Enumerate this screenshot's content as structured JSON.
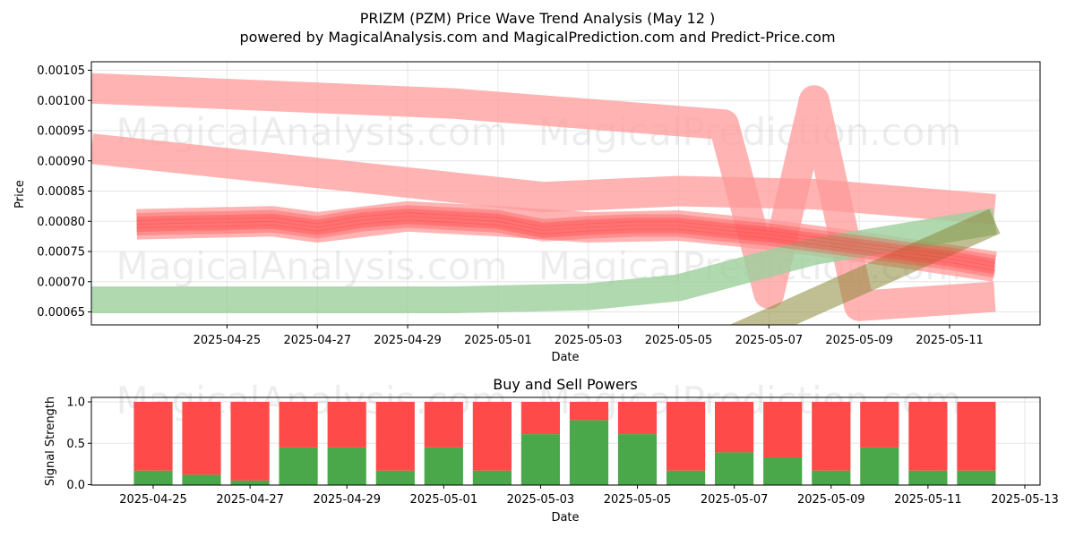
{
  "title_line1": "PRIZM (PZM) Price Wave Trend Analysis (May 12 )",
  "title_line2": "powered by MagicalAnalysis.com and MagicalPrediction.com and Predict-Price.com",
  "watermarks": [
    "MagicalAnalysis.com",
    "MagicalPrediction.com"
  ],
  "colors": {
    "sell": "#ff4a4a",
    "buy": "#4aa84a",
    "band_red": "#ff9a9a",
    "band_green": "#9ccf9c",
    "grid": "#e6e6e6"
  },
  "chart_data": [
    {
      "type": "line",
      "title": "",
      "xlabel": "Date",
      "ylabel": "Price",
      "x_ticks": [
        "2025-04-25",
        "2025-04-27",
        "2025-04-29",
        "2025-05-01",
        "2025-05-03",
        "2025-05-05",
        "2025-05-07",
        "2025-05-09",
        "2025-05-11"
      ],
      "y_ticks": [
        "0.00065",
        "0.00070",
        "0.00075",
        "0.00080",
        "0.00085",
        "0.00090",
        "0.00095",
        "0.00100",
        "0.00105"
      ],
      "xlim": [
        "2025-04-22",
        "2025-05-13"
      ],
      "ylim": [
        0.000628,
        0.001062
      ],
      "grid": true,
      "bands": [
        {
          "color": "red",
          "points": [
            [
              "2025-04-22",
              0.00102
            ],
            [
              "2025-04-30",
              0.000995
            ],
            [
              "2025-05-06",
              0.00096
            ],
            [
              "2025-05-07",
              0.00068
            ],
            [
              "2025-05-08",
              0.001
            ],
            [
              "2025-05-09",
              0.00066
            ],
            [
              "2025-05-12",
              0.000675
            ]
          ]
        },
        {
          "color": "red",
          "points": [
            [
              "2025-04-22",
              0.00092
            ],
            [
              "2025-05-02",
              0.00084
            ],
            [
              "2025-05-05",
              0.00085
            ],
            [
              "2025-05-08",
              0.000845
            ],
            [
              "2025-05-12",
              0.00082
            ]
          ]
        },
        {
          "color": "red",
          "points": [
            [
              "2025-04-23",
              0.000795
            ],
            [
              "2025-04-26",
              0.0008
            ],
            [
              "2025-04-27",
              0.00079
            ],
            [
              "2025-04-29",
              0.000808
            ],
            [
              "2025-05-01",
              0.0008
            ],
            [
              "2025-05-03",
              0.00079
            ],
            [
              "2025-05-05",
              0.000793
            ],
            [
              "2025-05-07",
              0.000778
            ],
            [
              "2025-05-09",
              0.000758
            ],
            [
              "2025-05-12",
              0.000725
            ]
          ]
        },
        {
          "color": "green",
          "points": [
            [
              "2025-04-22",
              0.00067
            ],
            [
              "2025-04-30",
              0.00067
            ],
            [
              "2025-05-03",
              0.000675
            ],
            [
              "2025-05-05",
              0.00069
            ],
            [
              "2025-05-08",
              0.00075
            ],
            [
              "2025-05-12",
              0.0008
            ]
          ]
        },
        {
          "color": "olive",
          "points": [
            [
              "2025-05-06",
              0.0006
            ],
            [
              "2025-05-12",
              0.0008
            ]
          ]
        }
      ],
      "series": [
        {
          "values": [
            [
              "2025-04-23",
              0.000795
            ],
            [
              "2025-04-24",
              0.000797
            ],
            [
              "2025-04-25",
              0.000798
            ],
            [
              "2025-04-26",
              0.0008
            ],
            [
              "2025-04-27",
              0.00079
            ],
            [
              "2025-04-28",
              0.000802
            ],
            [
              "2025-04-29",
              0.000808
            ],
            [
              "2025-04-30",
              0.000804
            ],
            [
              "2025-05-01",
              0.0008
            ],
            [
              "2025-05-02",
              0.000785
            ],
            [
              "2025-05-03",
              0.00079
            ],
            [
              "2025-05-04",
              0.000793
            ],
            [
              "2025-05-05",
              0.000793
            ],
            [
              "2025-05-06",
              0.000785
            ],
            [
              "2025-05-07",
              0.000778
            ],
            [
              "2025-05-08",
              0.000768
            ],
            [
              "2025-05-09",
              0.000758
            ],
            [
              "2025-05-10",
              0.000748
            ],
            [
              "2025-05-11",
              0.000738
            ],
            [
              "2025-05-12",
              0.000725
            ]
          ]
        }
      ]
    },
    {
      "type": "bar",
      "title": "Buy and Sell Powers",
      "xlabel": "Date",
      "ylabel": "Signal Strength",
      "x_ticks": [
        "2025-04-25",
        "2025-04-27",
        "2025-04-29",
        "2025-05-01",
        "2025-05-03",
        "2025-05-05",
        "2025-05-07",
        "2025-05-09",
        "2025-05-11",
        "2025-05-13"
      ],
      "y_ticks": [
        "0.0",
        "0.5",
        "1.0"
      ],
      "ylim": [
        0,
        1.05
      ],
      "grid": true,
      "categories": [
        "2025-04-25",
        "2025-04-26",
        "2025-04-27",
        "2025-04-28",
        "2025-04-29",
        "2025-04-30",
        "2025-05-01",
        "2025-05-02",
        "2025-05-03",
        "2025-05-04",
        "2025-05-05",
        "2025-05-06",
        "2025-05-07",
        "2025-05-08",
        "2025-05-09",
        "2025-05-10",
        "2025-05-11",
        "2025-05-12"
      ],
      "buy": [
        0.17,
        0.12,
        0.05,
        0.45,
        0.45,
        0.17,
        0.45,
        0.17,
        0.61,
        0.78,
        0.61,
        0.17,
        0.39,
        0.33,
        0.17,
        0.45,
        0.17,
        0.17
      ],
      "sell": [
        0.83,
        0.88,
        0.95,
        0.55,
        0.55,
        0.83,
        0.55,
        0.83,
        0.39,
        0.22,
        0.39,
        0.83,
        0.61,
        0.67,
        0.83,
        0.55,
        0.83,
        0.83
      ]
    }
  ]
}
